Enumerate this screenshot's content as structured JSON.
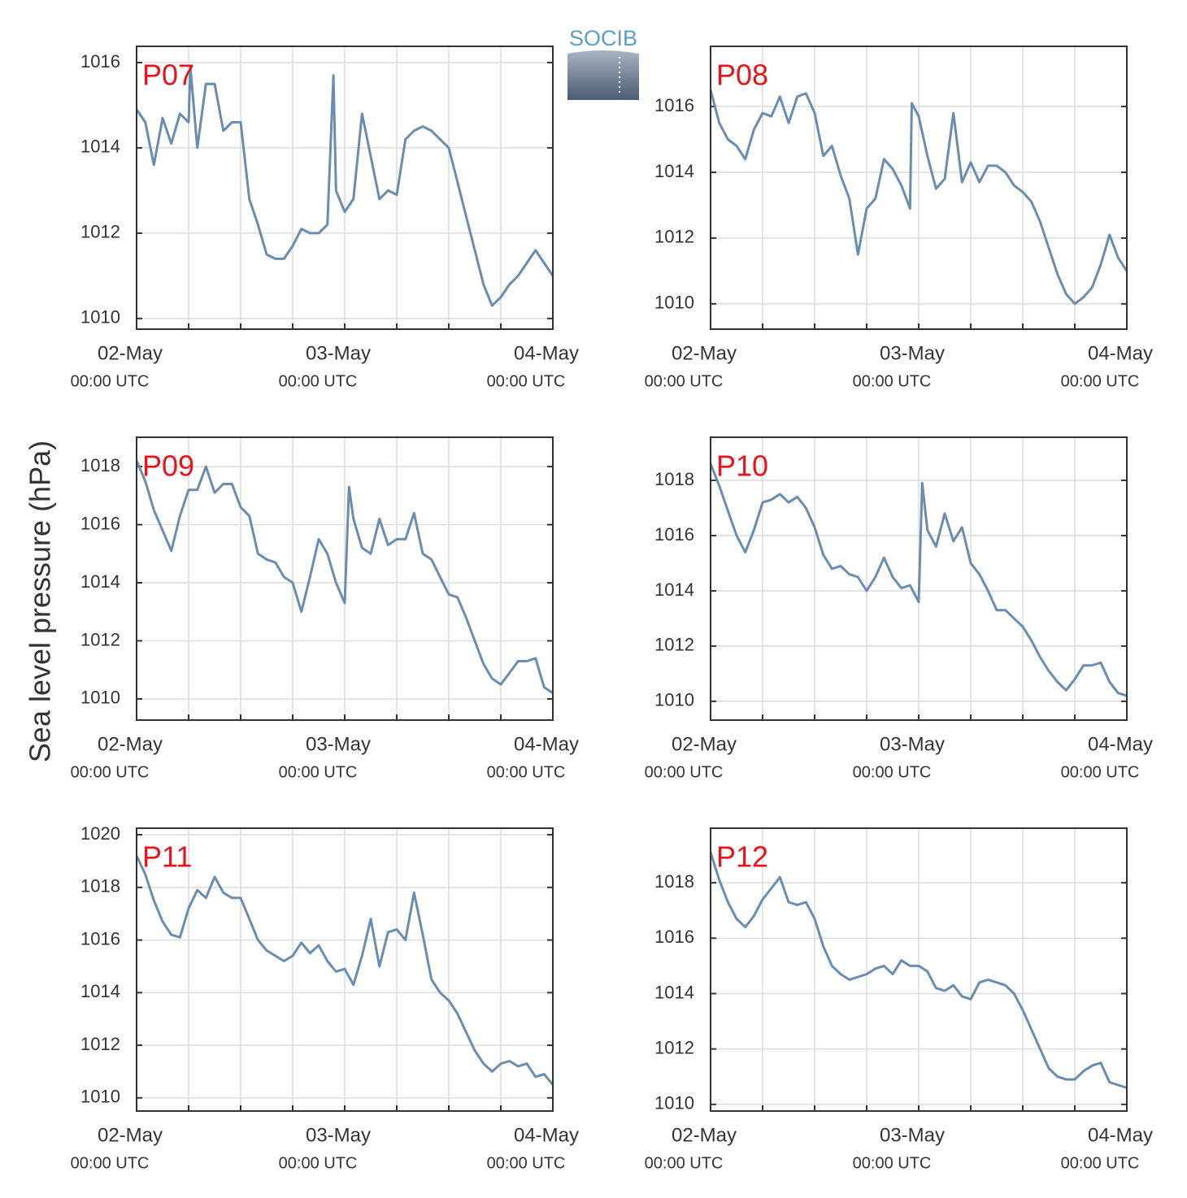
{
  "figure": {
    "ylabel": "Sea level pressure (hPa)",
    "logo": "SOCIB"
  },
  "chart_data": [
    {
      "type": "line",
      "title": "P07",
      "color": "#6a8caf",
      "x": [
        0,
        1,
        2,
        3,
        4,
        5,
        6,
        6.2,
        7,
        8,
        9,
        10,
        11,
        12,
        13,
        14,
        15,
        16,
        17,
        18,
        19,
        20,
        21,
        22,
        22.7,
        23,
        24,
        25,
        26,
        27,
        28,
        29,
        30,
        31,
        32,
        33,
        34,
        35,
        36,
        37,
        38,
        39,
        40,
        41,
        42,
        43,
        44,
        45,
        46,
        47,
        48
      ],
      "values": [
        1014.9,
        1014.6,
        1013.6,
        1014.7,
        1014.1,
        1014.8,
        1014.6,
        1015.9,
        1014.0,
        1015.5,
        1015.5,
        1014.4,
        1014.6,
        1014.6,
        1012.8,
        1012.2,
        1011.5,
        1011.4,
        1011.4,
        1011.7,
        1012.1,
        1012.0,
        1012.0,
        1012.2,
        1015.7,
        1013.0,
        1012.5,
        1012.8,
        1014.8,
        1013.8,
        1012.8,
        1013.0,
        1012.9,
        1014.2,
        1014.4,
        1014.5,
        1014.4,
        1014.2,
        1014.0,
        1013.2,
        1012.4,
        1011.6,
        1010.8,
        1010.3,
        1010.5,
        1010.8,
        1011.0,
        1011.3,
        1011.6,
        1011.3,
        1011.0
      ],
      "xlim": [
        0,
        48
      ],
      "xticks": [
        {
          "value": 0,
          "label": "02-May"
        },
        {
          "value": 24,
          "label": "03-May"
        },
        {
          "value": 48,
          "label": "04-May"
        }
      ],
      "xtick_sublabels": [
        "00:00 UTC",
        "00:00 UTC",
        "00:00 UTC"
      ],
      "xgrid": [
        6,
        12,
        18,
        30,
        36,
        42
      ],
      "ylim": [
        1009.75,
        1016.38
      ],
      "yticks": [
        1010,
        1012,
        1014,
        1016
      ],
      "grid": true
    },
    {
      "type": "line",
      "title": "P08",
      "color": "#6a8caf",
      "x": [
        0,
        1,
        2,
        3,
        4,
        5,
        6,
        7,
        8,
        9,
        10,
        11,
        12,
        13,
        14,
        15,
        16,
        17,
        18,
        19,
        20,
        21,
        22,
        23,
        23.2,
        24,
        25,
        26,
        27,
        28,
        29,
        30,
        31,
        32,
        33,
        34,
        35,
        36,
        37,
        38,
        39,
        40,
        41,
        42,
        43,
        44,
        45,
        46,
        47,
        48
      ],
      "values": [
        1016.5,
        1015.5,
        1015.0,
        1014.8,
        1014.4,
        1015.3,
        1015.8,
        1015.7,
        1016.3,
        1015.5,
        1016.3,
        1016.4,
        1015.8,
        1014.5,
        1014.8,
        1013.9,
        1013.2,
        1011.5,
        1012.9,
        1013.2,
        1014.4,
        1014.1,
        1013.6,
        1012.9,
        1016.1,
        1015.7,
        1014.5,
        1013.5,
        1013.8,
        1015.8,
        1013.7,
        1014.3,
        1013.7,
        1014.2,
        1014.2,
        1014.0,
        1013.6,
        1013.4,
        1013.1,
        1012.5,
        1011.7,
        1010.9,
        1010.3,
        1010.0,
        1010.2,
        1010.5,
        1011.2,
        1012.1,
        1011.4,
        1011.0
      ],
      "xlim": [
        0,
        48
      ],
      "xticks": [
        {
          "value": 0,
          "label": "02-May"
        },
        {
          "value": 24,
          "label": "03-May"
        },
        {
          "value": 48,
          "label": "04-May"
        }
      ],
      "xtick_sublabels": [
        "00:00 UTC",
        "00:00 UTC",
        "00:00 UTC"
      ],
      "xgrid": [
        6,
        12,
        18,
        30,
        36,
        42
      ],
      "ylim": [
        1009.23,
        1017.83
      ],
      "yticks": [
        1010,
        1012,
        1014,
        1016
      ],
      "grid": true
    },
    {
      "type": "line",
      "title": "P09",
      "color": "#6a8caf",
      "x": [
        0,
        1,
        2,
        3,
        4,
        5,
        6,
        7,
        8,
        9,
        10,
        11,
        12,
        13,
        14,
        15,
        16,
        17,
        18,
        19,
        20,
        21,
        22,
        23,
        24,
        24.5,
        25,
        26,
        27,
        28,
        29,
        30,
        31,
        32,
        33,
        34,
        35,
        36,
        37,
        38,
        39,
        40,
        41,
        42,
        43,
        44,
        45,
        46,
        47,
        48
      ],
      "values": [
        1018.2,
        1017.5,
        1016.5,
        1015.8,
        1015.1,
        1016.3,
        1017.2,
        1017.2,
        1018.0,
        1017.1,
        1017.4,
        1017.4,
        1016.6,
        1016.3,
        1015.0,
        1014.8,
        1014.7,
        1014.2,
        1014.0,
        1013.0,
        1014.2,
        1015.5,
        1015.0,
        1014.0,
        1013.3,
        1017.3,
        1016.2,
        1015.2,
        1015.0,
        1016.2,
        1015.3,
        1015.5,
        1015.5,
        1016.4,
        1015.0,
        1014.8,
        1014.2,
        1013.6,
        1013.5,
        1012.8,
        1012.0,
        1011.2,
        1010.7,
        1010.5,
        1010.9,
        1011.3,
        1011.3,
        1011.4,
        1010.4,
        1010.2
      ],
      "xlim": [
        0,
        48
      ],
      "xticks": [
        {
          "value": 0,
          "label": "02-May"
        },
        {
          "value": 24,
          "label": "03-May"
        },
        {
          "value": 48,
          "label": "04-May"
        }
      ],
      "xtick_sublabels": [
        "00:00 UTC",
        "00:00 UTC",
        "00:00 UTC"
      ],
      "xgrid": [
        6,
        12,
        18,
        30,
        36,
        42
      ],
      "ylim": [
        1009.27,
        1019.01
      ],
      "yticks": [
        1010,
        1012,
        1014,
        1016,
        1018
      ],
      "grid": true
    },
    {
      "type": "line",
      "title": "P10",
      "color": "#6a8caf",
      "x": [
        0,
        1,
        2,
        3,
        4,
        5,
        6,
        7,
        8,
        9,
        10,
        11,
        12,
        13,
        14,
        15,
        16,
        17,
        18,
        19,
        20,
        21,
        22,
        23,
        24,
        24.4,
        25,
        26,
        27,
        28,
        29,
        30,
        31,
        32,
        33,
        34,
        35,
        36,
        37,
        38,
        39,
        40,
        41,
        42,
        43,
        44,
        45,
        46,
        47,
        48
      ],
      "values": [
        1018.6,
        1017.8,
        1016.9,
        1016.0,
        1015.4,
        1016.2,
        1017.2,
        1017.3,
        1017.5,
        1017.2,
        1017.4,
        1017.0,
        1016.3,
        1015.3,
        1014.8,
        1014.9,
        1014.6,
        1014.5,
        1014.0,
        1014.5,
        1015.2,
        1014.5,
        1014.1,
        1014.2,
        1013.6,
        1017.9,
        1016.2,
        1015.6,
        1016.8,
        1015.8,
        1016.3,
        1015.0,
        1014.6,
        1014.0,
        1013.3,
        1013.3,
        1013.0,
        1012.7,
        1012.2,
        1011.6,
        1011.1,
        1010.7,
        1010.4,
        1010.8,
        1011.3,
        1011.3,
        1011.4,
        1010.7,
        1010.3,
        1010.2
      ],
      "xlim": [
        0,
        48
      ],
      "xticks": [
        {
          "value": 0,
          "label": "02-May"
        },
        {
          "value": 24,
          "label": "03-May"
        },
        {
          "value": 48,
          "label": "04-May"
        }
      ],
      "xtick_sublabels": [
        "00:00 UTC",
        "00:00 UTC",
        "00:00 UTC"
      ],
      "xgrid": [
        6,
        12,
        18,
        30,
        36,
        42
      ],
      "ylim": [
        1009.32,
        1019.56
      ],
      "yticks": [
        1010,
        1012,
        1014,
        1016,
        1018
      ],
      "grid": true
    },
    {
      "type": "line",
      "title": "P11",
      "color": "#6a8caf",
      "x": [
        0,
        1,
        2,
        3,
        4,
        5,
        6,
        7,
        8,
        9,
        10,
        11,
        12,
        13,
        14,
        15,
        16,
        17,
        18,
        19,
        20,
        21,
        22,
        23,
        24,
        25,
        26,
        27,
        28,
        29,
        30,
        31,
        32,
        33,
        34,
        35,
        36,
        37,
        38,
        39,
        40,
        41,
        42,
        43,
        44,
        45,
        46,
        47,
        48
      ],
      "values": [
        1019.2,
        1018.5,
        1017.5,
        1016.7,
        1016.2,
        1016.1,
        1017.2,
        1017.9,
        1017.6,
        1018.4,
        1017.8,
        1017.6,
        1017.6,
        1016.8,
        1016.0,
        1015.6,
        1015.4,
        1015.2,
        1015.4,
        1015.9,
        1015.5,
        1015.8,
        1015.2,
        1014.8,
        1014.9,
        1014.3,
        1015.4,
        1016.8,
        1015.0,
        1016.3,
        1016.4,
        1016.0,
        1017.8,
        1016.2,
        1014.5,
        1014.0,
        1013.7,
        1013.2,
        1012.5,
        1011.8,
        1011.3,
        1011.0,
        1011.3,
        1011.4,
        1011.2,
        1011.3,
        1010.8,
        1010.9,
        1010.5
      ],
      "xlim": [
        0,
        48
      ],
      "xticks": [
        {
          "value": 0,
          "label": "02-May"
        },
        {
          "value": 24,
          "label": "03-May"
        },
        {
          "value": 48,
          "label": "04-May"
        }
      ],
      "xtick_sublabels": [
        "00:00 UTC",
        "00:00 UTC",
        "00:00 UTC"
      ],
      "xgrid": [
        6,
        12,
        18,
        30,
        36,
        42
      ],
      "ylim": [
        1009.5,
        1020.25
      ],
      "yticks": [
        1010,
        1012,
        1014,
        1016,
        1018,
        1020
      ],
      "grid": true
    },
    {
      "type": "line",
      "title": "P12",
      "color": "#6a8caf",
      "x": [
        0,
        1,
        2,
        3,
        4,
        5,
        6,
        7,
        8,
        9,
        10,
        11,
        12,
        13,
        14,
        15,
        16,
        17,
        18,
        19,
        20,
        21,
        22,
        23,
        24,
        25,
        26,
        27,
        28,
        29,
        30,
        31,
        32,
        33,
        34,
        35,
        36,
        37,
        38,
        39,
        40,
        41,
        42,
        43,
        44,
        45,
        46,
        47,
        48
      ],
      "values": [
        1019.1,
        1018.1,
        1017.3,
        1016.7,
        1016.4,
        1016.8,
        1017.4,
        1017.8,
        1018.2,
        1017.3,
        1017.2,
        1017.3,
        1016.7,
        1015.7,
        1015.0,
        1014.7,
        1014.5,
        1014.6,
        1014.7,
        1014.9,
        1015.0,
        1014.7,
        1015.2,
        1015.0,
        1015.0,
        1014.8,
        1014.2,
        1014.1,
        1014.3,
        1013.9,
        1013.8,
        1014.4,
        1014.5,
        1014.4,
        1014.3,
        1014.0,
        1013.4,
        1012.7,
        1012.0,
        1011.3,
        1011.0,
        1010.9,
        1010.9,
        1011.2,
        1011.4,
        1011.5,
        1010.8,
        1010.7,
        1010.6
      ],
      "xlim": [
        0,
        48
      ],
      "xticks": [
        {
          "value": 0,
          "label": "02-May"
        },
        {
          "value": 24,
          "label": "03-May"
        },
        {
          "value": 48,
          "label": "04-May"
        }
      ],
      "xtick_sublabels": [
        "00:00 UTC",
        "00:00 UTC",
        "00:00 UTC"
      ],
      "xgrid": [
        6,
        12,
        18,
        30,
        36,
        42
      ],
      "ylim": [
        1009.76,
        1019.97
      ],
      "yticks": [
        1010,
        1012,
        1014,
        1016,
        1018
      ],
      "grid": true
    }
  ]
}
